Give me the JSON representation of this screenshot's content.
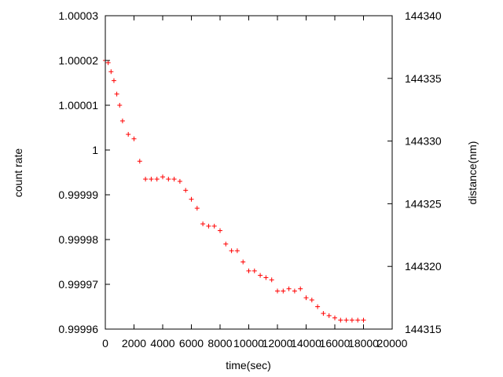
{
  "chart_data": {
    "type": "scatter",
    "marker": "+",
    "color": "#ff0000",
    "grid": false,
    "xlabel": "time(sec)",
    "ylabel": "count rate",
    "y2label": "distance(nm)",
    "xlim": [
      0,
      20000
    ],
    "ylim": [
      0.99996,
      1.00003
    ],
    "y2lim": [
      144315,
      144340
    ],
    "x_ticks": [
      "0",
      "2000",
      "4000",
      "6000",
      "8000",
      "10000",
      "12000",
      "14000",
      "16000",
      "18000",
      "20000"
    ],
    "y_ticks": [
      "0.99996",
      "0.99997",
      "0.99998",
      "0.99999",
      "1",
      "1.00001",
      "1.00002",
      "1.00003"
    ],
    "y2_ticks": [
      "144315",
      "144320",
      "144325",
      "144330",
      "144335",
      "144340"
    ],
    "series": [
      {
        "x": [
          0,
          200,
          400,
          600,
          800,
          1000,
          1200,
          1600,
          2000,
          2400,
          2800,
          3200,
          3600,
          4000,
          4400,
          4800,
          5200,
          5600,
          6000,
          6400,
          6800,
          7200,
          7600,
          8000,
          8400,
          8800,
          9200,
          9600,
          10000,
          10400,
          10800,
          11200,
          11600,
          12000,
          12400,
          12800,
          13200,
          13600,
          14000,
          14400,
          14800,
          15200,
          15600,
          16000,
          16400,
          16800,
          17200,
          17600,
          18000
        ],
        "y": [
          1.00002,
          1.0000195,
          1.0000175,
          1.0000155,
          1.0000125,
          1.00001,
          1.0000065,
          1.0000035,
          1.0000025,
          0.9999975,
          0.9999935,
          0.9999935,
          0.9999935,
          0.999994,
          0.9999935,
          0.9999935,
          0.999993,
          0.999991,
          0.999989,
          0.999987,
          0.9999835,
          0.999983,
          0.999983,
          0.999982,
          0.999979,
          0.9999775,
          0.9999775,
          0.999975,
          0.999973,
          0.999973,
          0.999972,
          0.9999715,
          0.999971,
          0.9999685,
          0.9999685,
          0.999969,
          0.9999685,
          0.999969,
          0.999967,
          0.9999665,
          0.999965,
          0.9999635,
          0.999963,
          0.9999625,
          0.999962,
          0.999962,
          0.999962,
          0.999962,
          0.999962
        ]
      }
    ]
  }
}
